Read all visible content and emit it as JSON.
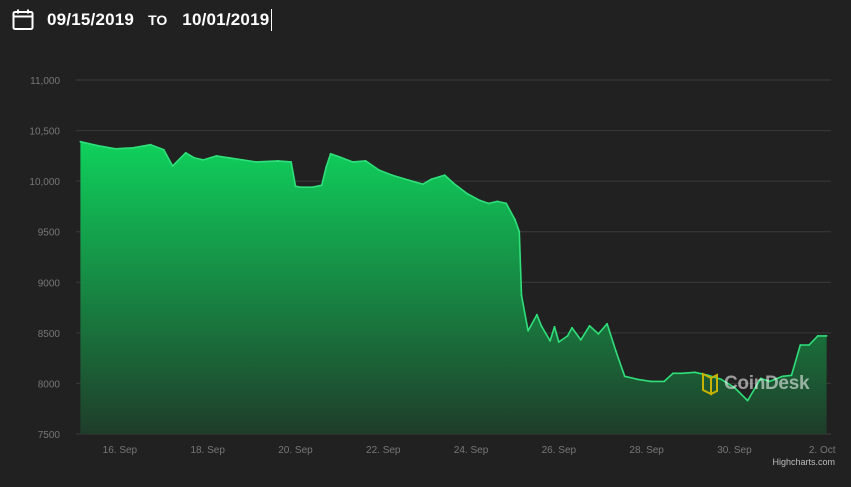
{
  "date_range": {
    "start": "09/15/2019",
    "to_label": "TO",
    "end": "10/01/2019"
  },
  "branding": {
    "watermark": "CoinDesk",
    "credits": "Highcharts.com"
  },
  "colors": {
    "background": "#212121",
    "line": "#2fe07a",
    "fill_top": "#0fd15c",
    "fill_bottom": "#1f3d2a",
    "grid": "#3a3a3a",
    "tick_label": "#777777"
  },
  "chart_data": {
    "type": "area",
    "title": "",
    "xlabel": "",
    "ylabel": "",
    "ylim": [
      7500,
      11000
    ],
    "yticks": [
      11000,
      10500,
      10000,
      9500,
      9000,
      8500,
      8000,
      7500
    ],
    "ytick_labels": [
      "11,000",
      "10,500",
      "10,000",
      "9500",
      "9000",
      "8500",
      "8000",
      "7500"
    ],
    "xlim": [
      15.0,
      32.2
    ],
    "xticks": [
      16,
      18,
      20,
      22,
      24,
      26,
      28,
      30,
      32
    ],
    "xtick_labels": [
      "16. Sep",
      "18. Sep",
      "20. Sep",
      "22. Sep",
      "24. Sep",
      "26. Sep",
      "28. Sep",
      "30. Sep",
      "2. Oct"
    ],
    "grid": true,
    "legend": "none",
    "x": [
      15.1,
      15.5,
      15.9,
      16.3,
      16.7,
      17.0,
      17.2,
      17.5,
      17.7,
      17.9,
      18.2,
      18.5,
      18.8,
      19.1,
      19.6,
      19.9,
      20.0,
      20.1,
      20.4,
      20.6,
      20.7,
      20.8,
      21.0,
      21.3,
      21.6,
      21.9,
      22.2,
      22.5,
      22.9,
      23.1,
      23.4,
      23.6,
      23.9,
      24.2,
      24.4,
      24.6,
      24.8,
      25.0,
      25.1,
      25.15,
      25.3,
      25.5,
      25.6,
      25.8,
      25.9,
      26.0,
      26.2,
      26.3,
      26.5,
      26.7,
      26.9,
      27.1,
      27.3,
      27.5,
      27.8,
      28.1,
      28.4,
      28.6,
      28.8,
      29.1,
      29.4,
      29.7,
      30.0,
      30.3,
      30.6,
      30.8,
      31.1,
      31.3,
      31.5,
      31.7,
      31.9,
      32.1
    ],
    "values": [
      10390,
      10350,
      10320,
      10330,
      10360,
      10310,
      10150,
      10280,
      10230,
      10210,
      10250,
      10230,
      10210,
      10190,
      10200,
      10190,
      9950,
      9940,
      9940,
      9960,
      10140,
      10270,
      10240,
      10190,
      10200,
      10110,
      10060,
      10020,
      9970,
      10020,
      10060,
      9980,
      9880,
      9810,
      9780,
      9800,
      9780,
      9620,
      9500,
      8870,
      8520,
      8680,
      8570,
      8420,
      8560,
      8410,
      8470,
      8550,
      8430,
      8570,
      8490,
      8590,
      8320,
      8070,
      8040,
      8020,
      8020,
      8100,
      8100,
      8110,
      8080,
      8040,
      7960,
      7830,
      8050,
      8020,
      8070,
      8080,
      8380,
      8380,
      8470,
      8470
    ]
  }
}
